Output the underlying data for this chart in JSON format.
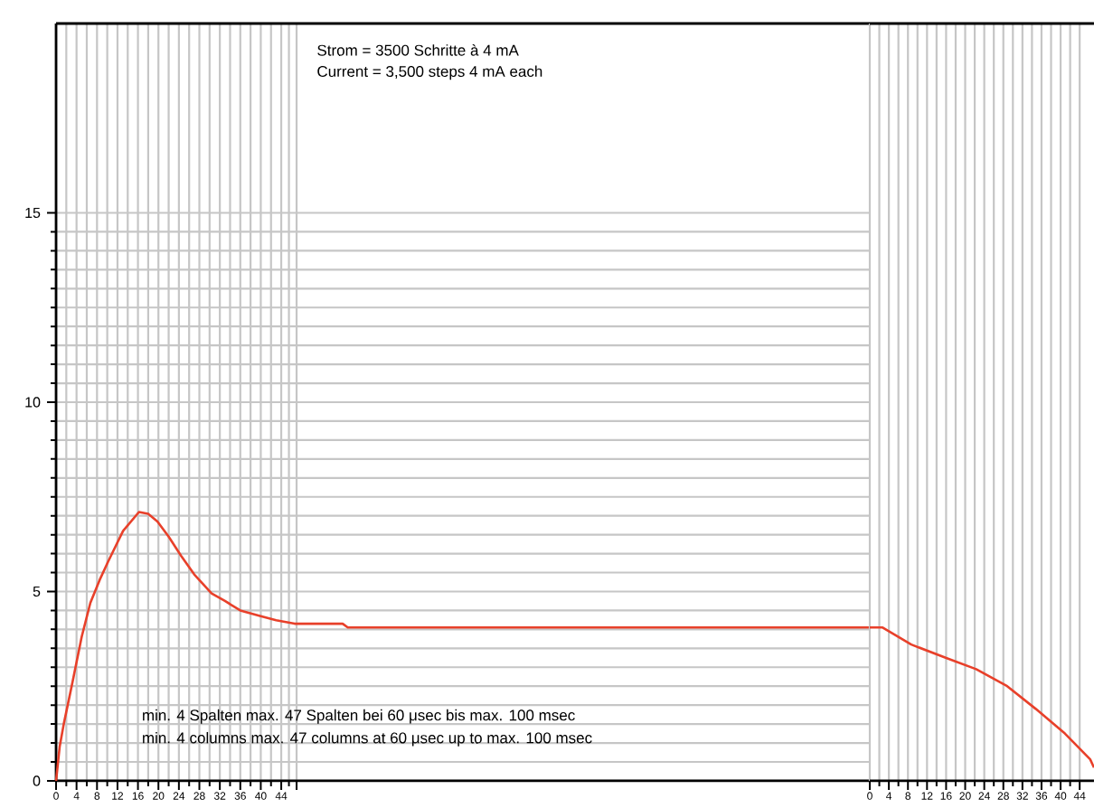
{
  "chart_data": [
    {
      "type": "line",
      "annotations": [
        "Strom = 3500 Schritte à 4 mA",
        "Current = 3,500 steps 4 mA each",
        "min. 4 Spalten max. 47 Spalten bei 60 μsec bis max. 100 msec",
        "min. 4 columns max. 47 columns at 60 μsec up to max. 100 msec"
      ],
      "series": [
        {
          "color": "#e8402a",
          "x": [
            0,
            0.7,
            1.5,
            3.2,
            5,
            6.7,
            8.5,
            10.2,
            13.1,
            16.2,
            18,
            19.8,
            22,
            24.4,
            27,
            30.4,
            33,
            36,
            40,
            43,
            46.6,
            56,
            57,
            159
          ],
          "values": [
            0,
            0.9,
            1.5,
            2.6,
            3.8,
            4.7,
            5.3,
            5.8,
            6.6,
            7.1,
            7.05,
            6.85,
            6.45,
            5.95,
            5.45,
            4.95,
            4.75,
            4.5,
            4.35,
            4.24,
            4.15,
            4.15,
            4.05,
            4.05
          ]
        }
      ],
      "xlim": [
        0,
        159
      ],
      "ylim": [
        0,
        20
      ],
      "xticks": [
        0,
        4,
        8,
        12,
        16,
        20,
        24,
        28,
        32,
        36,
        40,
        44,
        {
          "value": 47,
          "label": null
        }
      ],
      "yticks": [
        0,
        5,
        10,
        15
      ],
      "grid": true,
      "marker": "none",
      "line_style": "solid"
    },
    {
      "type": "line",
      "series": [
        {
          "color": "#e8402a",
          "x": [
            0,
            2.7,
            8.7,
            15.9,
            22.3,
            28.8,
            34.8,
            40.9,
            46.2,
            47
          ],
          "values": [
            4.05,
            4.05,
            3.6,
            3.25,
            2.95,
            2.5,
            1.9,
            1.25,
            0.57,
            0.35
          ]
        }
      ],
      "xlim": [
        0,
        47
      ],
      "ylim": [
        0,
        20
      ],
      "xticks": [
        0,
        4,
        8,
        12,
        16,
        20,
        24,
        28,
        32,
        36,
        40,
        44
      ],
      "yticks": [
        0,
        5,
        10,
        15
      ],
      "grid": true,
      "tick_labels": "x",
      "marker": "none",
      "line_style": "solid"
    }
  ]
}
